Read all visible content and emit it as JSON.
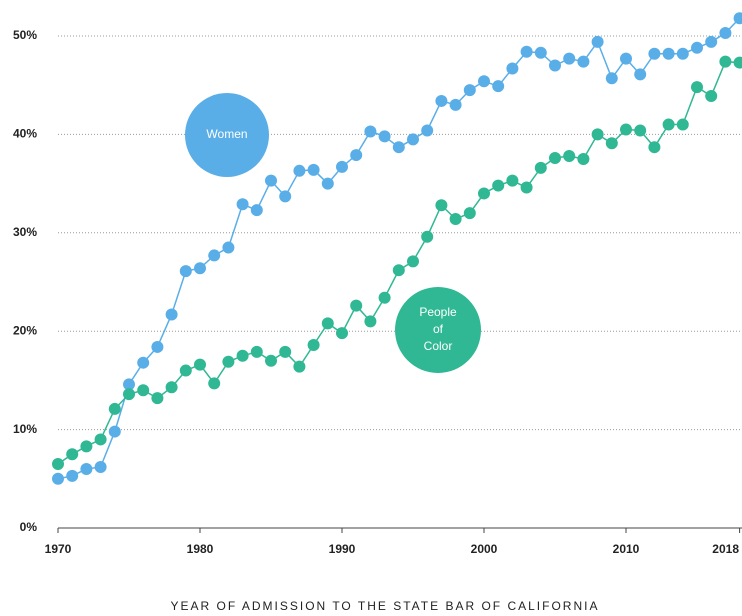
{
  "chart_data": {
    "type": "line",
    "x_label": "YEAR OF ADMISSION TO THE STATE BAR OF CALIFORNIA",
    "x": [
      1970,
      1971,
      1972,
      1973,
      1974,
      1975,
      1976,
      1977,
      1978,
      1979,
      1980,
      1981,
      1982,
      1983,
      1984,
      1985,
      1986,
      1987,
      1988,
      1989,
      1990,
      1991,
      1992,
      1993,
      1994,
      1995,
      1996,
      1997,
      1998,
      1999,
      2000,
      2001,
      2002,
      2003,
      2004,
      2005,
      2006,
      2007,
      2008,
      2009,
      2010,
      2011,
      2012,
      2013,
      2014,
      2015,
      2016,
      2017,
      2018
    ],
    "series": [
      {
        "name": "Women",
        "color": "#5aaee8",
        "values": [
          5.0,
          5.3,
          6.0,
          6.2,
          9.8,
          14.6,
          16.8,
          18.4,
          21.7,
          26.1,
          26.4,
          27.7,
          28.5,
          32.9,
          32.3,
          35.3,
          33.7,
          36.3,
          36.4,
          35.0,
          36.7,
          37.9,
          40.3,
          39.8,
          38.7,
          39.5,
          40.4,
          43.4,
          43.0,
          44.5,
          45.4,
          44.9,
          46.7,
          48.4,
          48.3,
          47.0,
          47.7,
          47.4,
          49.4,
          45.7,
          47.7,
          46.1,
          48.2,
          48.2,
          48.2,
          48.8,
          49.4,
          50.3,
          51.8
        ]
      },
      {
        "name": "People of Color",
        "color": "#2fb893",
        "values": [
          6.5,
          7.5,
          8.3,
          9.0,
          12.1,
          13.6,
          14.0,
          13.2,
          14.3,
          16.0,
          16.6,
          14.7,
          16.9,
          17.5,
          17.9,
          17.0,
          17.9,
          16.4,
          18.6,
          20.8,
          19.8,
          22.6,
          21.0,
          23.4,
          26.2,
          27.1,
          29.6,
          32.8,
          31.4,
          32.0,
          34.0,
          34.8,
          35.3,
          34.6,
          36.6,
          37.6,
          37.8,
          37.5,
          40.0,
          39.1,
          40.5,
          40.4,
          38.7,
          41.0,
          41.0,
          44.8,
          43.9,
          47.4,
          47.3
        ]
      }
    ],
    "xlim": [
      1970,
      2018
    ],
    "xticks": [
      1970,
      1980,
      1990,
      2000,
      2010,
      2018
    ],
    "ylim": [
      0,
      50
    ],
    "yticks": [
      {
        "value": 0,
        "label": "0%"
      },
      {
        "value": 10,
        "label": "10%"
      },
      {
        "value": 20,
        "label": "20%"
      },
      {
        "value": 30,
        "label": "30%"
      },
      {
        "value": 40,
        "label": "40%"
      },
      {
        "value": 50,
        "label": "50%"
      }
    ],
    "grid": true
  }
}
